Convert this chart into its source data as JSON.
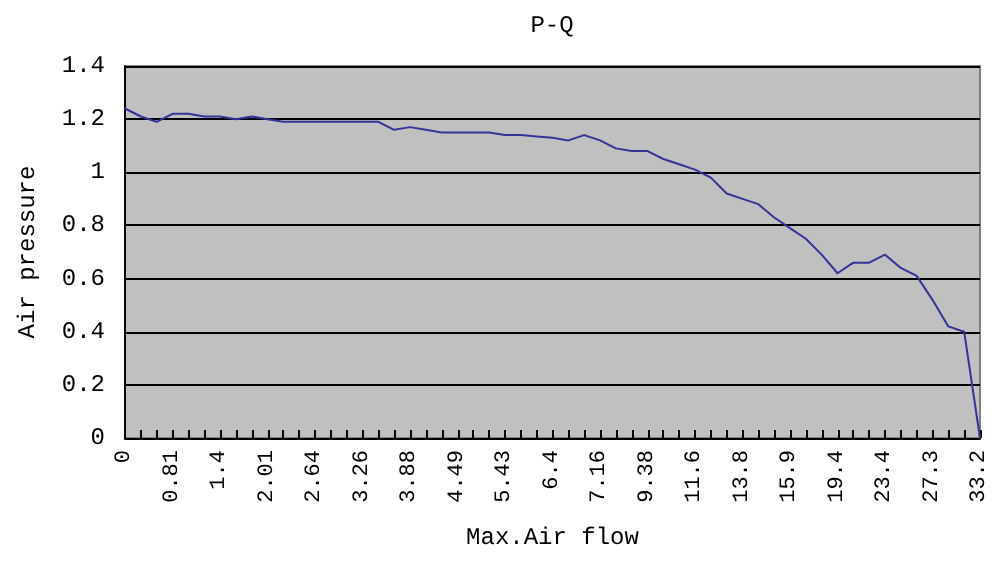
{
  "chart_data": {
    "type": "line",
    "title": "P-Q",
    "xlabel": "Max.Air flow",
    "ylabel": "Air pressure",
    "categories": [
      "0",
      null,
      null,
      "0.81",
      null,
      null,
      "1.4",
      null,
      null,
      "2.01",
      null,
      null,
      "2.64",
      null,
      null,
      "3.26",
      null,
      null,
      "3.88",
      null,
      null,
      "4.49",
      null,
      null,
      "5.43",
      null,
      null,
      "6.4",
      null,
      null,
      "7.16",
      null,
      null,
      "9.38",
      null,
      null,
      "11.6",
      null,
      null,
      "13.8",
      null,
      null,
      "15.9",
      null,
      null,
      "19.4",
      null,
      null,
      "23.4",
      null,
      null,
      "27.3",
      null,
      null,
      "33.2"
    ],
    "series": [
      {
        "color": "#333399",
        "values": [
          1.24,
          1.21,
          1.19,
          1.22,
          1.22,
          1.21,
          1.21,
          1.2,
          1.21,
          1.2,
          1.19,
          1.19,
          1.19,
          1.19,
          1.19,
          1.19,
          1.19,
          1.16,
          1.17,
          1.16,
          1.15,
          1.15,
          1.15,
          1.15,
          1.14,
          1.14,
          1.135,
          1.13,
          1.12,
          1.14,
          1.12,
          1.09,
          1.08,
          1.08,
          1.05,
          1.03,
          1.01,
          0.98,
          0.92,
          0.9,
          0.88,
          0.83,
          0.79,
          0.75,
          0.69,
          0.62,
          0.66,
          0.66,
          0.69,
          0.64,
          0.61,
          0.52,
          0.42,
          0.4,
          0
        ]
      }
    ],
    "ylim": [
      0,
      1.4
    ],
    "yticks": [
      0,
      0.2,
      0.4,
      0.6,
      0.8,
      1,
      1.2,
      1.4
    ],
    "grid": "y",
    "marker": "none",
    "line_style": "solid"
  }
}
